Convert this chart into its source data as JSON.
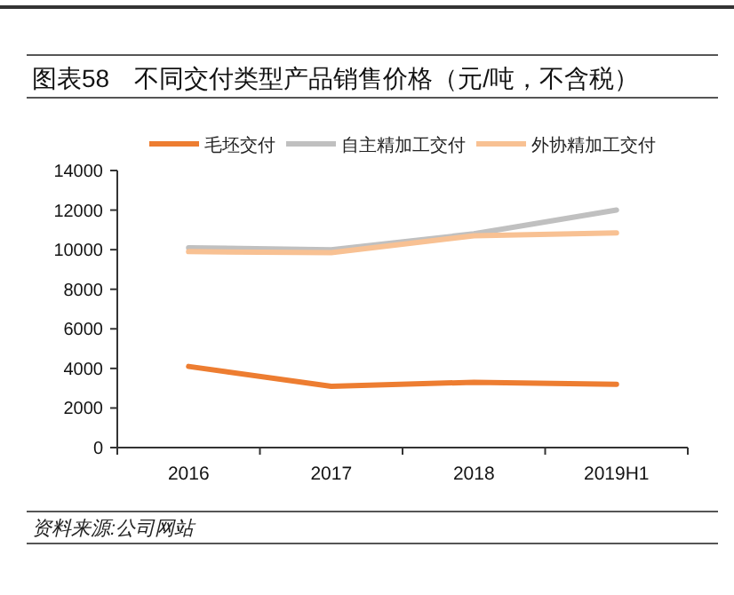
{
  "chart_data": {
    "type": "line",
    "title": "图表58　不同交付类型产品销售价格（元/吨，不含税）",
    "categories": [
      "2016",
      "2017",
      "2018",
      "2019H1"
    ],
    "series": [
      {
        "name": "毛坯交付",
        "color": "#ed7d31",
        "values": [
          4100,
          3100,
          3300,
          3200
        ]
      },
      {
        "name": "自主精加工交付",
        "color": "#c0c0c0",
        "values": [
          10100,
          10000,
          10800,
          12000
        ]
      },
      {
        "name": "外协精加工交付",
        "color": "#f8c193",
        "values": [
          9900,
          9850,
          10700,
          10850
        ]
      }
    ],
    "ylim": [
      0,
      14000
    ],
    "yticks": [
      0,
      2000,
      4000,
      6000,
      8000,
      10000,
      12000,
      14000
    ],
    "grid": false,
    "legend": "top",
    "annotations": [
      "资料来源:公司网站"
    ]
  }
}
